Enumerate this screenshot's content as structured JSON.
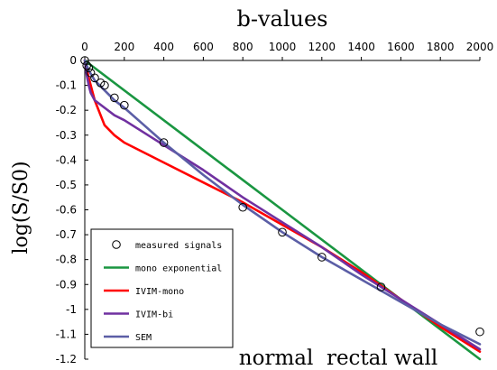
{
  "chart_data": {
    "type": "line",
    "xlabel": "b-values",
    "ylabel": "log(S/S0)",
    "annotation": "normal  rectal wall",
    "xlim": [
      0,
      2000
    ],
    "ylim": [
      -1.2,
      0
    ],
    "x_ticks": [
      "0",
      "200",
      "400",
      "600",
      "800",
      "1000",
      "1200",
      "1400",
      "1600",
      "1800",
      "2000"
    ],
    "y_ticks": [
      "0",
      "-0.1",
      "-0.2",
      "-0.3",
      "-0.4",
      "-0.5",
      "-0.6",
      "-0.7",
      "-0.8",
      "-0.9",
      "-1",
      "-1.1",
      "-1.2"
    ],
    "x_axis_position": "top",
    "grid": false,
    "legend_position": "bottom-left",
    "measured": {
      "name": "measured signals",
      "marker": "open-circle",
      "color": "#000000",
      "x": [
        0,
        10,
        20,
        30,
        50,
        80,
        100,
        150,
        200,
        400,
        800,
        1000,
        1200,
        1500,
        2000
      ],
      "y": [
        0,
        -0.02,
        -0.03,
        -0.05,
        -0.07,
        -0.09,
        -0.1,
        -0.15,
        -0.18,
        -0.33,
        -0.59,
        -0.69,
        -0.79,
        -0.91,
        -1.09
      ]
    },
    "series": [
      {
        "name": "mono exponential",
        "color": "#1a9641",
        "x": [
          0,
          500,
          1000,
          1500,
          2000
        ],
        "y": [
          0,
          -0.3,
          -0.6,
          -0.9,
          -1.2
        ]
      },
      {
        "name": "IVIM-mono",
        "color": "#ff0000",
        "x": [
          0,
          20,
          50,
          100,
          150,
          200,
          400,
          600,
          800,
          1000,
          1200,
          1400,
          1600,
          1800,
          2000
        ],
        "y": [
          0,
          -0.07,
          -0.16,
          -0.26,
          -0.3,
          -0.33,
          -0.41,
          -0.49,
          -0.57,
          -0.66,
          -0.75,
          -0.85,
          -0.96,
          -1.07,
          -1.17
        ]
      },
      {
        "name": "IVIM-bi",
        "color": "#7030a0",
        "x": [
          0,
          10,
          20,
          30,
          50,
          100,
          150,
          200,
          400,
          600,
          800,
          1000,
          1200,
          1400,
          1600,
          1800,
          2000
        ],
        "y": [
          0,
          -0.06,
          -0.1,
          -0.13,
          -0.16,
          -0.19,
          -0.22,
          -0.24,
          -0.34,
          -0.44,
          -0.55,
          -0.65,
          -0.75,
          -0.86,
          -0.96,
          -1.06,
          -1.16
        ]
      },
      {
        "name": "SEM",
        "color": "#5b5ea6",
        "x": [
          0,
          20,
          50,
          100,
          150,
          200,
          300,
          400,
          600,
          800,
          1000,
          1200,
          1400,
          1600,
          1800,
          2000
        ],
        "y": [
          0,
          -0.04,
          -0.08,
          -0.12,
          -0.16,
          -0.19,
          -0.26,
          -0.33,
          -0.46,
          -0.58,
          -0.69,
          -0.79,
          -0.88,
          -0.97,
          -1.06,
          -1.14
        ]
      }
    ]
  }
}
